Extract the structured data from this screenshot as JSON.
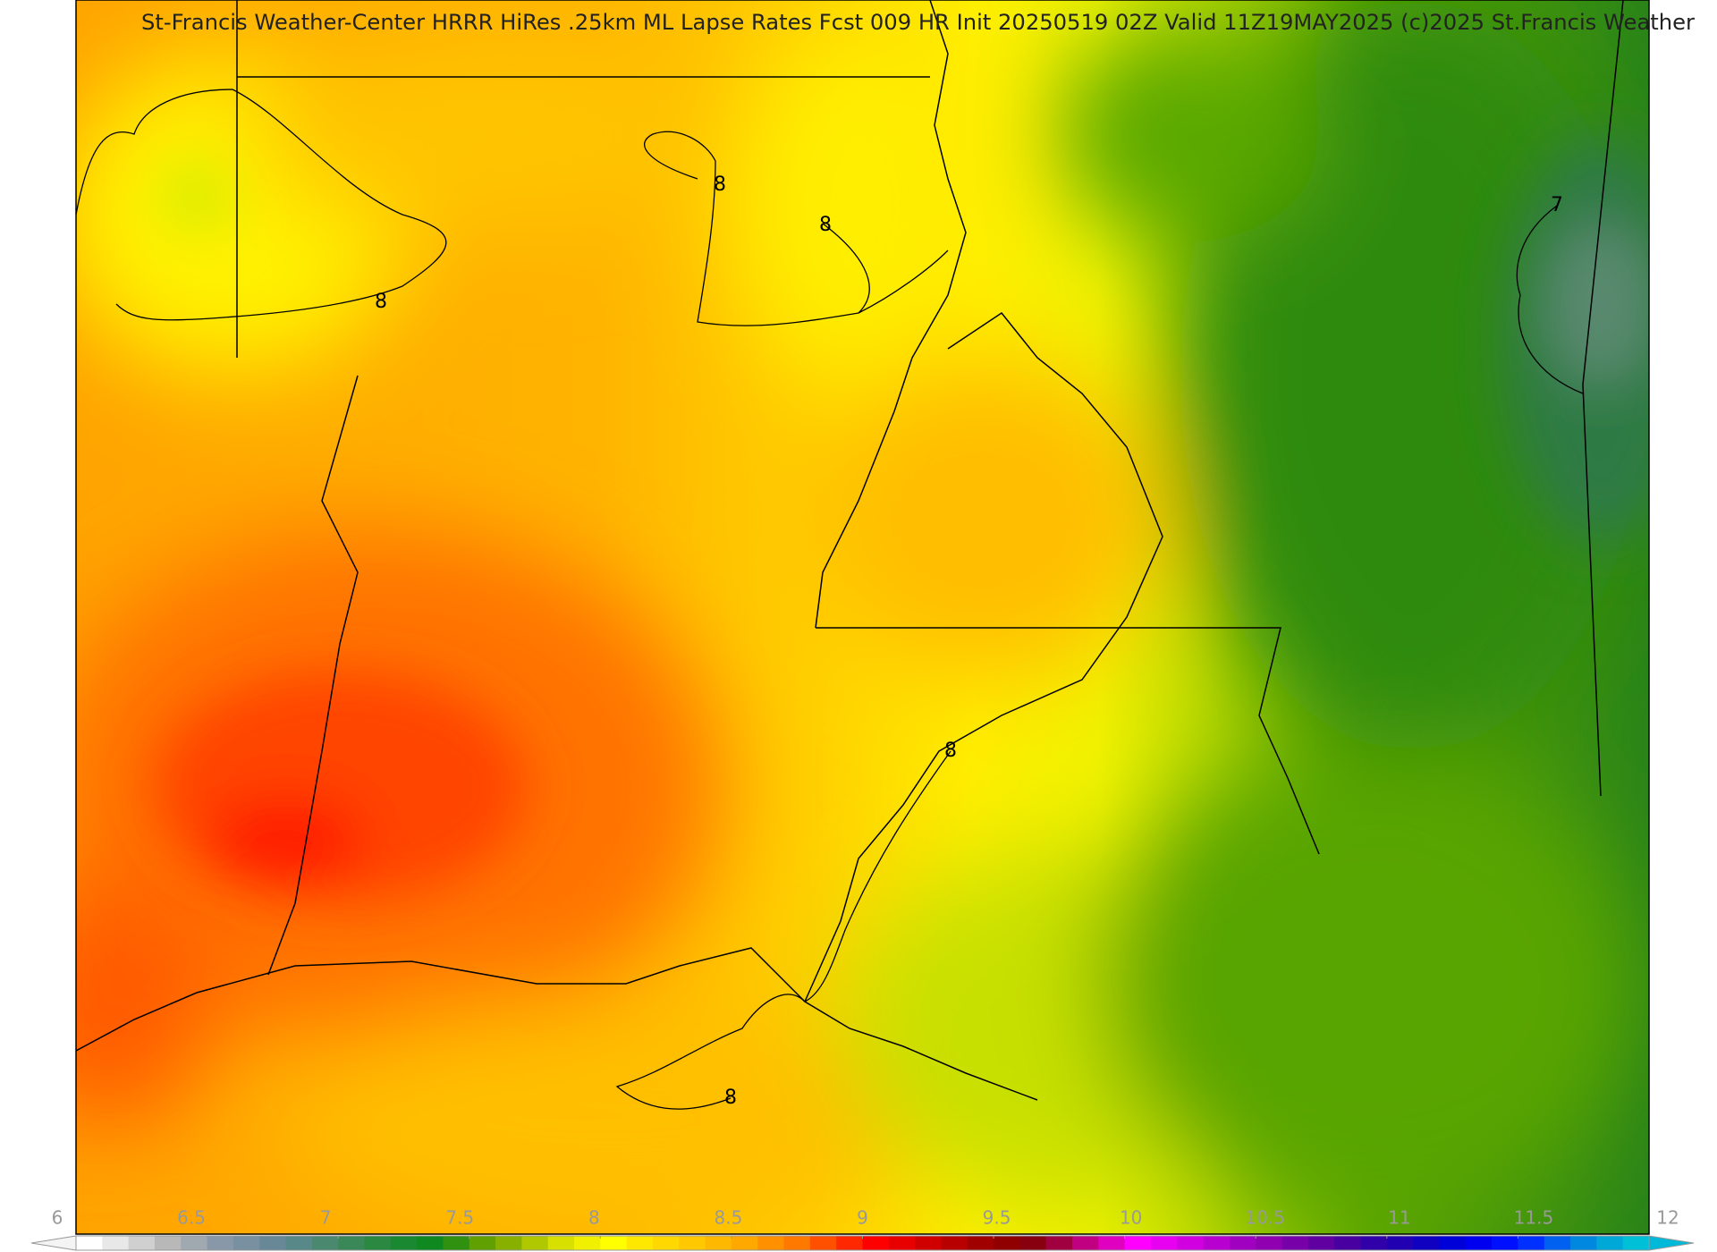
{
  "title": "St-Francis Weather-Center HRRR HiRes .25km ML Lapse Rates  Fcst 009 HR Init 20250519 02Z  Valid 11Z19MAY2025    (c)2025 St.Francis Weather",
  "contour_labels": [
    8,
    8,
    8,
    8,
    8,
    7
  ],
  "colorbar": {
    "range": [
      6,
      12
    ],
    "ticks": [
      6,
      6.5,
      7,
      7.5,
      8,
      8.5,
      9,
      9.5,
      10,
      10.5,
      11,
      11.5,
      12
    ],
    "under_color": "#f4f4f4",
    "over_color": "#00b8d8",
    "colors": [
      "#ffffff",
      "#e8e8e8",
      "#d0d0d0",
      "#b8b8b8",
      "#a0a8b0",
      "#8898a8",
      "#7890a0",
      "#688898",
      "#588888",
      "#4a8870",
      "#3a8858",
      "#2a8840",
      "#1a8830",
      "#108820",
      "#309010",
      "#60a000",
      "#88b000",
      "#b0c800",
      "#d8e000",
      "#f0f000",
      "#ffff00",
      "#ffe800",
      "#ffd800",
      "#ffc800",
      "#ffb800",
      "#ffa800",
      "#ff9000",
      "#ff7800",
      "#ff5000",
      "#ff2800",
      "#ff0000",
      "#e80000",
      "#d00000",
      "#b80000",
      "#a00000",
      "#900000",
      "#880010",
      "#a00040",
      "#c00080",
      "#e000c0",
      "#ff00ff",
      "#e800f0",
      "#d000e0",
      "#b800d0",
      "#a000c0",
      "#9000b0",
      "#7800a8",
      "#6000a0",
      "#4800a0",
      "#3000a8",
      "#2000b0",
      "#1000c0",
      "#0000d8",
      "#0000f0",
      "#0010ff",
      "#0030ff",
      "#0060f0",
      "#0088e0",
      "#00a8d8",
      "#00c0d8"
    ]
  }
}
